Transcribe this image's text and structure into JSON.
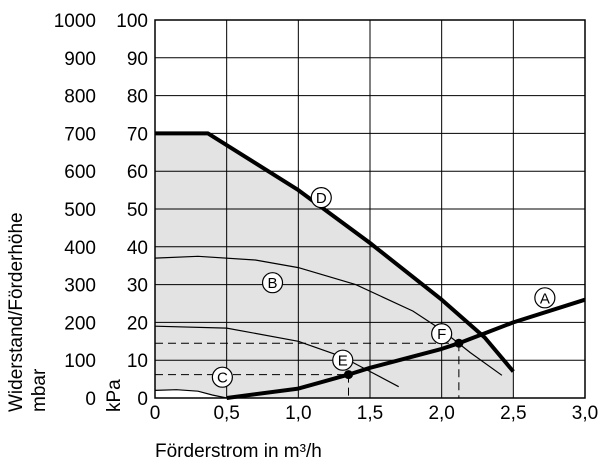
{
  "chart_data": {
    "type": "line",
    "xlabel": "Förderstrom in m³/h",
    "ylabel_outer": "Widerstand/Förderhöhe",
    "ylabel_outer_unit": "mbar",
    "ylabel_inner_unit": "kPa",
    "xlim": [
      0,
      3.0
    ],
    "ylim_kpa": [
      0,
      100
    ],
    "ylim_mbar": [
      0,
      1000
    ],
    "grid": true,
    "x_ticks": [
      "0",
      "0,5",
      "1,0",
      "1,5",
      "2,0",
      "2,5",
      "3,0"
    ],
    "x_tick_values": [
      0,
      0.5,
      1.0,
      1.5,
      2.0,
      2.5,
      3.0
    ],
    "y_ticks_mbar": [
      "0",
      "100",
      "200",
      "300",
      "400",
      "500",
      "600",
      "700",
      "800",
      "900",
      "1000"
    ],
    "y_ticks_kpa": [
      "0",
      "10",
      "20",
      "30",
      "40",
      "50",
      "60",
      "70",
      "80",
      "90",
      "100"
    ],
    "y_tick_values": [
      0,
      10,
      20,
      30,
      40,
      50,
      60,
      70,
      80,
      90,
      100
    ],
    "shaded_region": "between D and C",
    "series": [
      {
        "name": "A",
        "style": "thick",
        "x": [
          0.5,
          1.0,
          1.35,
          1.5,
          2.0,
          2.12,
          2.5,
          3.0
        ],
        "y": [
          0,
          2.5,
          6.2,
          8,
          13,
          14.5,
          20,
          26
        ]
      },
      {
        "name": "B",
        "style": "thin",
        "x": [
          0,
          0.3,
          0.7,
          1.0,
          1.4,
          1.8,
          2.0,
          2.2,
          2.42
        ],
        "y": [
          37,
          37.5,
          36.5,
          34.5,
          30,
          23,
          18,
          12,
          6
        ]
      },
      {
        "name": "C",
        "style": "thin",
        "x": [
          0,
          0.15,
          0.3,
          0.4,
          0.5
        ],
        "y": [
          2,
          2.2,
          1.8,
          0.8,
          0
        ]
      },
      {
        "name": "D",
        "style": "thick",
        "x": [
          0,
          0.37,
          1.0,
          1.5,
          2.0,
          2.3,
          2.5
        ],
        "y": [
          70,
          70,
          55,
          41,
          26,
          16,
          7
        ]
      },
      {
        "name": "E",
        "style": "thin",
        "x": [
          0,
          0.5,
          1.0,
          1.3,
          1.5,
          1.7
        ],
        "y": [
          19,
          18.5,
          15,
          11,
          7,
          3
        ]
      },
      {
        "name": "F",
        "style": "thin",
        "x": [
          2.12
        ],
        "y": [
          14.5
        ]
      }
    ],
    "operating_points": [
      {
        "label": "E",
        "x": 1.35,
        "y": 6.2
      },
      {
        "label": "F",
        "x": 2.12,
        "y": 14.5
      }
    ],
    "curve_labels": [
      {
        "text": "A",
        "x": 2.72,
        "y": 26.5
      },
      {
        "text": "B",
        "x": 0.82,
        "y": 30.5
      },
      {
        "text": "C",
        "x": 0.47,
        "y": 5.5
      },
      {
        "text": "D",
        "x": 1.16,
        "y": 53
      },
      {
        "text": "E",
        "x": 1.31,
        "y": 10
      },
      {
        "text": "F",
        "x": 2.0,
        "y": 17
      }
    ]
  }
}
